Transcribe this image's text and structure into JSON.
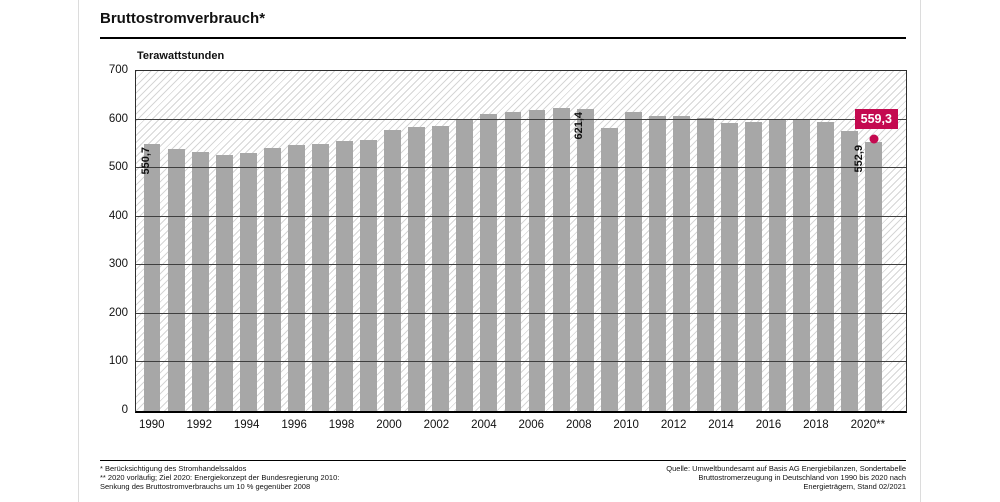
{
  "header": {
    "title": "Bruttostromverbrauch*"
  },
  "chart_data": {
    "type": "bar",
    "title": "Bruttostromverbrauch*",
    "ylabel": "Terawattstunden",
    "xlabel": "",
    "ylim": [
      0,
      700
    ],
    "yticks": [
      700,
      600,
      500,
      400,
      300,
      200,
      100,
      0
    ],
    "grid": true,
    "years": [
      1990,
      1991,
      1992,
      1993,
      1994,
      1995,
      1996,
      1997,
      1998,
      1999,
      2000,
      2001,
      2002,
      2003,
      2004,
      2005,
      2006,
      2007,
      2008,
      2009,
      2010,
      2011,
      2012,
      2013,
      2014,
      2015,
      2016,
      2017,
      2018,
      2019,
      2020
    ],
    "values": [
      550.7,
      540,
      532.5,
      528,
      530.5,
      541.5,
      547.5,
      550,
      556.5,
      557.5,
      579.5,
      585,
      587.5,
      602,
      610.5,
      616.5,
      620.5,
      623.5,
      621.4,
      583,
      615.5,
      607.5,
      607,
      603.5,
      593.5,
      595.5,
      599,
      600,
      595,
      576.5,
      552.9
    ],
    "xtick_labels": [
      "1990",
      "",
      "1992",
      "",
      "1994",
      "",
      "1996",
      "",
      "1998",
      "",
      "2000",
      "",
      "2002",
      "",
      "2004",
      "",
      "2006",
      "",
      "2008",
      "",
      "2010",
      "",
      "2012",
      "",
      "2014",
      "",
      "2016",
      "",
      "2018",
      "",
      "2020**"
    ],
    "bar_value_labels": [
      {
        "year": 1990,
        "text": "550,7",
        "placement": "inside"
      },
      {
        "year": 2008,
        "text": "621,4",
        "placement": "inside"
      },
      {
        "year": 2020,
        "text": "552,9",
        "placement": "outside-left"
      }
    ],
    "target_marker": {
      "year": 2020,
      "value": 559.3,
      "label": "559,3"
    },
    "colors": {
      "bar": "#a7a7a7",
      "accent": "#c40a50",
      "grid": "#3f3f3f",
      "hatch": "#d6d6d6"
    },
    "legend_position": "none"
  },
  "footer": {
    "notes": [
      "* Berücksichtigung des Stromhandelssaldos",
      "** 2020 vorläufig; Ziel 2020: Energiekonzept der Bundesregierung 2010:",
      "Senkung des Bruttostromverbrauchs um 10 % gegenüber 2008"
    ],
    "source": [
      "Quelle: Umweltbundesamt auf Basis AG Energiebilanzen, Sondertabelle",
      "Bruttostromerzeugung in Deutschland von 1990 bis 2020 nach",
      "Energieträgern, Stand 02/2021"
    ]
  }
}
